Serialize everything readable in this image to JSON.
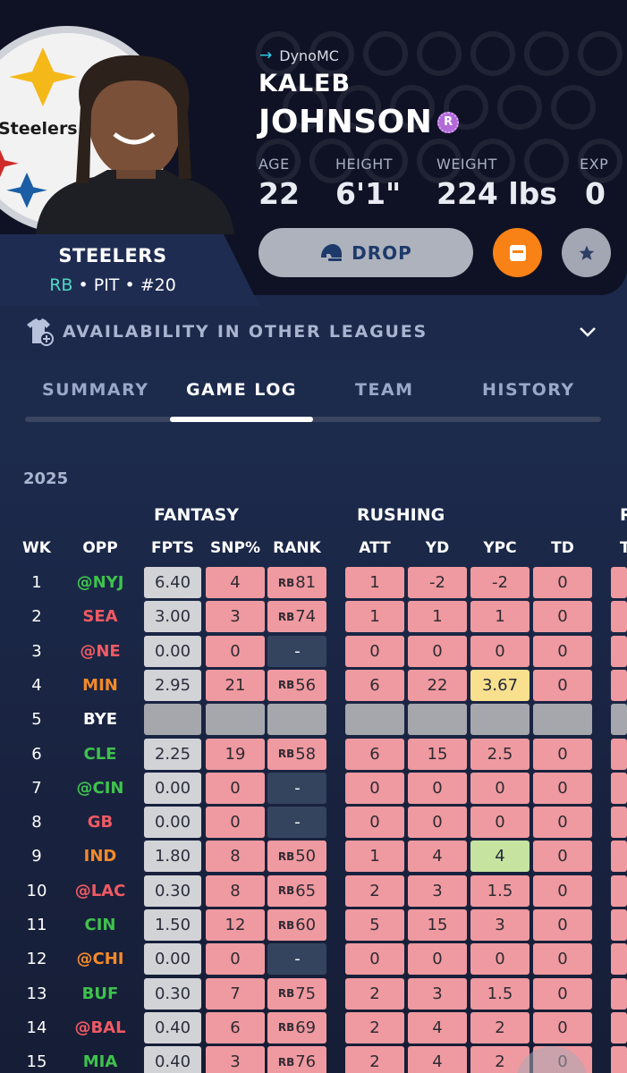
{
  "owner": "DynoMC",
  "player": {
    "first_name": "KALEB",
    "last_name": "JOHNSON",
    "badge": "R",
    "team": "STEELERS",
    "position": "RB",
    "meta_rest": " • PIT • #20",
    "logo_text": "Steelers"
  },
  "stats": [
    {
      "label": "AGE",
      "value": "22"
    },
    {
      "label": "HEIGHT",
      "value": "6'1\""
    },
    {
      "label": "WEIGHT",
      "value": "224 lbs"
    },
    {
      "label": "EXP",
      "value": "0"
    }
  ],
  "actions": {
    "drop_label": "DROP",
    "drop_icon": "helmet-icon",
    "note_icon": "note-icon",
    "star_icon": "star-icon"
  },
  "availability": {
    "label": "AVAILABILITY IN OTHER LEAGUES",
    "icon": "jersey-plus-icon"
  },
  "tabs": [
    "SUMMARY",
    "GAME LOG",
    "TEAM",
    "HISTORY"
  ],
  "active_tab": "GAME LOG",
  "season": "2025",
  "groups": {
    "fantasy": "FANTASY",
    "rushing": "RUSHING"
  },
  "columns": [
    "WK",
    "OPP",
    "FPTS",
    "SNP%",
    "RANK",
    "ATT",
    "YD",
    "YPC",
    "TD"
  ],
  "colors": {
    "opp_green": "#3fc24d",
    "opp_red": "#ef5a63",
    "opp_orange": "#f28a2b",
    "opp_white": "#ffffff",
    "accent_orange": "#f98216"
  },
  "rows": [
    {
      "wk": "1",
      "opp": "@NYJ",
      "opp_color": "green",
      "fpts": "6.40",
      "snp": "4",
      "rank_pre": "RB",
      "rank": "81",
      "att": "1",
      "yd": "-2",
      "ypc": "-2",
      "ypc_color": "red",
      "td": "0"
    },
    {
      "wk": "2",
      "opp": "SEA",
      "opp_color": "red",
      "fpts": "3.00",
      "snp": "3",
      "rank_pre": "RB",
      "rank": "74",
      "att": "1",
      "yd": "1",
      "ypc": "1",
      "ypc_color": "red",
      "td": "0"
    },
    {
      "wk": "3",
      "opp": "@NE",
      "opp_color": "red",
      "fpts": "0.00",
      "snp": "0",
      "rank_pre": "",
      "rank": "-",
      "att": "0",
      "yd": "0",
      "ypc": "0",
      "ypc_color": "red",
      "td": "0"
    },
    {
      "wk": "4",
      "opp": "MIN",
      "opp_color": "orange",
      "fpts": "2.95",
      "snp": "21",
      "rank_pre": "RB",
      "rank": "56",
      "att": "6",
      "yd": "22",
      "ypc": "3.67",
      "ypc_color": "yellow",
      "td": "0"
    },
    {
      "wk": "5",
      "opp": "BYE",
      "opp_color": "white",
      "bye": true
    },
    {
      "wk": "6",
      "opp": "CLE",
      "opp_color": "green",
      "fpts": "2.25",
      "snp": "19",
      "rank_pre": "RB",
      "rank": "58",
      "att": "6",
      "yd": "15",
      "ypc": "2.5",
      "ypc_color": "red",
      "td": "0"
    },
    {
      "wk": "7",
      "opp": "@CIN",
      "opp_color": "green",
      "fpts": "0.00",
      "snp": "0",
      "rank_pre": "",
      "rank": "-",
      "att": "0",
      "yd": "0",
      "ypc": "0",
      "ypc_color": "red",
      "td": "0"
    },
    {
      "wk": "8",
      "opp": "GB",
      "opp_color": "red",
      "fpts": "0.00",
      "snp": "0",
      "rank_pre": "",
      "rank": "-",
      "att": "0",
      "yd": "0",
      "ypc": "0",
      "ypc_color": "red",
      "td": "0"
    },
    {
      "wk": "9",
      "opp": "IND",
      "opp_color": "orange",
      "fpts": "1.80",
      "snp": "8",
      "rank_pre": "RB",
      "rank": "50",
      "att": "1",
      "yd": "4",
      "ypc": "4",
      "ypc_color": "green",
      "td": "0"
    },
    {
      "wk": "10",
      "opp": "@LAC",
      "opp_color": "red",
      "fpts": "0.30",
      "snp": "8",
      "rank_pre": "RB",
      "rank": "65",
      "att": "2",
      "yd": "3",
      "ypc": "1.5",
      "ypc_color": "red",
      "td": "0"
    },
    {
      "wk": "11",
      "opp": "CIN",
      "opp_color": "green",
      "fpts": "1.50",
      "snp": "12",
      "rank_pre": "RB",
      "rank": "60",
      "att": "5",
      "yd": "15",
      "ypc": "3",
      "ypc_color": "red",
      "td": "0"
    },
    {
      "wk": "12",
      "opp": "@CHI",
      "opp_color": "orange",
      "fpts": "0.00",
      "snp": "0",
      "rank_pre": "",
      "rank": "-",
      "att": "0",
      "yd": "0",
      "ypc": "0",
      "ypc_color": "red",
      "td": "0"
    },
    {
      "wk": "13",
      "opp": "BUF",
      "opp_color": "green",
      "fpts": "0.30",
      "snp": "7",
      "rank_pre": "RB",
      "rank": "75",
      "att": "2",
      "yd": "3",
      "ypc": "1.5",
      "ypc_color": "red",
      "td": "0"
    },
    {
      "wk": "14",
      "opp": "@BAL",
      "opp_color": "red",
      "fpts": "0.40",
      "snp": "6",
      "rank_pre": "RB",
      "rank": "69",
      "att": "2",
      "yd": "4",
      "ypc": "2",
      "ypc_color": "red",
      "td": "0"
    },
    {
      "wk": "15",
      "opp": "MIA",
      "opp_color": "green",
      "fpts": "0.40",
      "snp": "3",
      "rank_pre": "RB",
      "rank": "76",
      "att": "2",
      "yd": "4",
      "ypc": "2",
      "ypc_color": "red",
      "td": "0"
    }
  ]
}
